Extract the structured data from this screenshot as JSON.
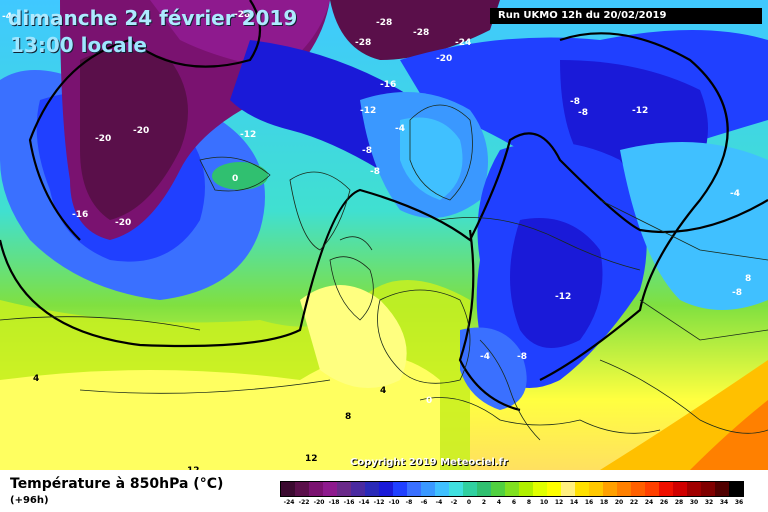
{
  "header": {
    "date_title": "dimanche 24 février 2019",
    "time_title": "13:00 locale",
    "run_info": "Run UKMO 12h du 20/02/2019"
  },
  "copyright": "Copyright 2019 Meteociel.fr",
  "map_labels": [
    {
      "text": "-4",
      "color": "#ffffff"
    },
    {
      "text": "-28",
      "color": "#ffffff"
    },
    {
      "text": "-28",
      "color": "#ffffff"
    },
    {
      "text": "-28",
      "color": "#ffffff"
    },
    {
      "text": "-28",
      "color": "#ffffff"
    },
    {
      "text": "-24",
      "color": "#ffffff"
    },
    {
      "text": "-20",
      "color": "#ffffff"
    },
    {
      "text": "-16",
      "color": "#ffffff"
    },
    {
      "text": "-12",
      "color": "#ffffff"
    },
    {
      "text": "-12",
      "color": "#ffffff"
    },
    {
      "text": "-20",
      "color": "#ffffff"
    },
    {
      "text": "-20",
      "color": "#ffffff"
    },
    {
      "text": "-16",
      "color": "#ffffff"
    },
    {
      "text": "-20",
      "color": "#ffffff"
    },
    {
      "text": "-4",
      "color": "#ffffff"
    },
    {
      "text": "-8",
      "color": "#ffffff"
    },
    {
      "text": "-8",
      "color": "#ffffff"
    },
    {
      "text": "0",
      "color": "#ffffff"
    },
    {
      "text": "-8",
      "color": "#ffffff"
    },
    {
      "text": "-8",
      "color": "#ffffff"
    },
    {
      "text": "-12",
      "color": "#ffffff"
    },
    {
      "text": "-12",
      "color": "#ffffff"
    },
    {
      "text": "-4",
      "color": "#ffffff"
    },
    {
      "text": "-8",
      "color": "#ffffff"
    },
    {
      "text": "-4",
      "color": "#ffffff"
    },
    {
      "text": "8",
      "color": "#ffffff"
    },
    {
      "text": "-8",
      "color": "#ffffff"
    },
    {
      "text": "4",
      "color": "#000000"
    },
    {
      "text": "4",
      "color": "#000000"
    },
    {
      "text": "0",
      "color": "#ffffff"
    },
    {
      "text": "8",
      "color": "#000000"
    },
    {
      "text": "12",
      "color": "#000000"
    },
    {
      "text": "12",
      "color": "#000000"
    }
  ],
  "footer": {
    "title": "Température à 850hPa (°C)",
    "subtitle": "(+96h)"
  },
  "legend": {
    "colors": [
      "#3b0a30",
      "#5a0f4a",
      "#7a1270",
      "#8e1a8e",
      "#6a2a8a",
      "#4a2aa0",
      "#2a2ab8",
      "#1a1ad8",
      "#2040ff",
      "#3a70ff",
      "#3a98ff",
      "#40c0ff",
      "#40e0e0",
      "#30d0a0",
      "#30c070",
      "#50d040",
      "#80e020",
      "#b0f000",
      "#e0ff00",
      "#ffff00",
      "#fff080",
      "#ffe000",
      "#ffc800",
      "#ffa000",
      "#ff8000",
      "#ff6000",
      "#ff4000",
      "#f01000",
      "#d00000",
      "#a00000",
      "#800000",
      "#500000",
      "#000000"
    ],
    "ticks": [
      "-24",
      "-22",
      "-20",
      "-18",
      "-16",
      "-14",
      "-12",
      "-10",
      "-8",
      "-6",
      "-4",
      "-2",
      "0",
      "2",
      "4",
      "6",
      "8",
      "10",
      "12",
      "14",
      "16",
      "18",
      "20",
      "22",
      "24",
      "26",
      "28",
      "30",
      "32",
      "34",
      "36"
    ]
  }
}
